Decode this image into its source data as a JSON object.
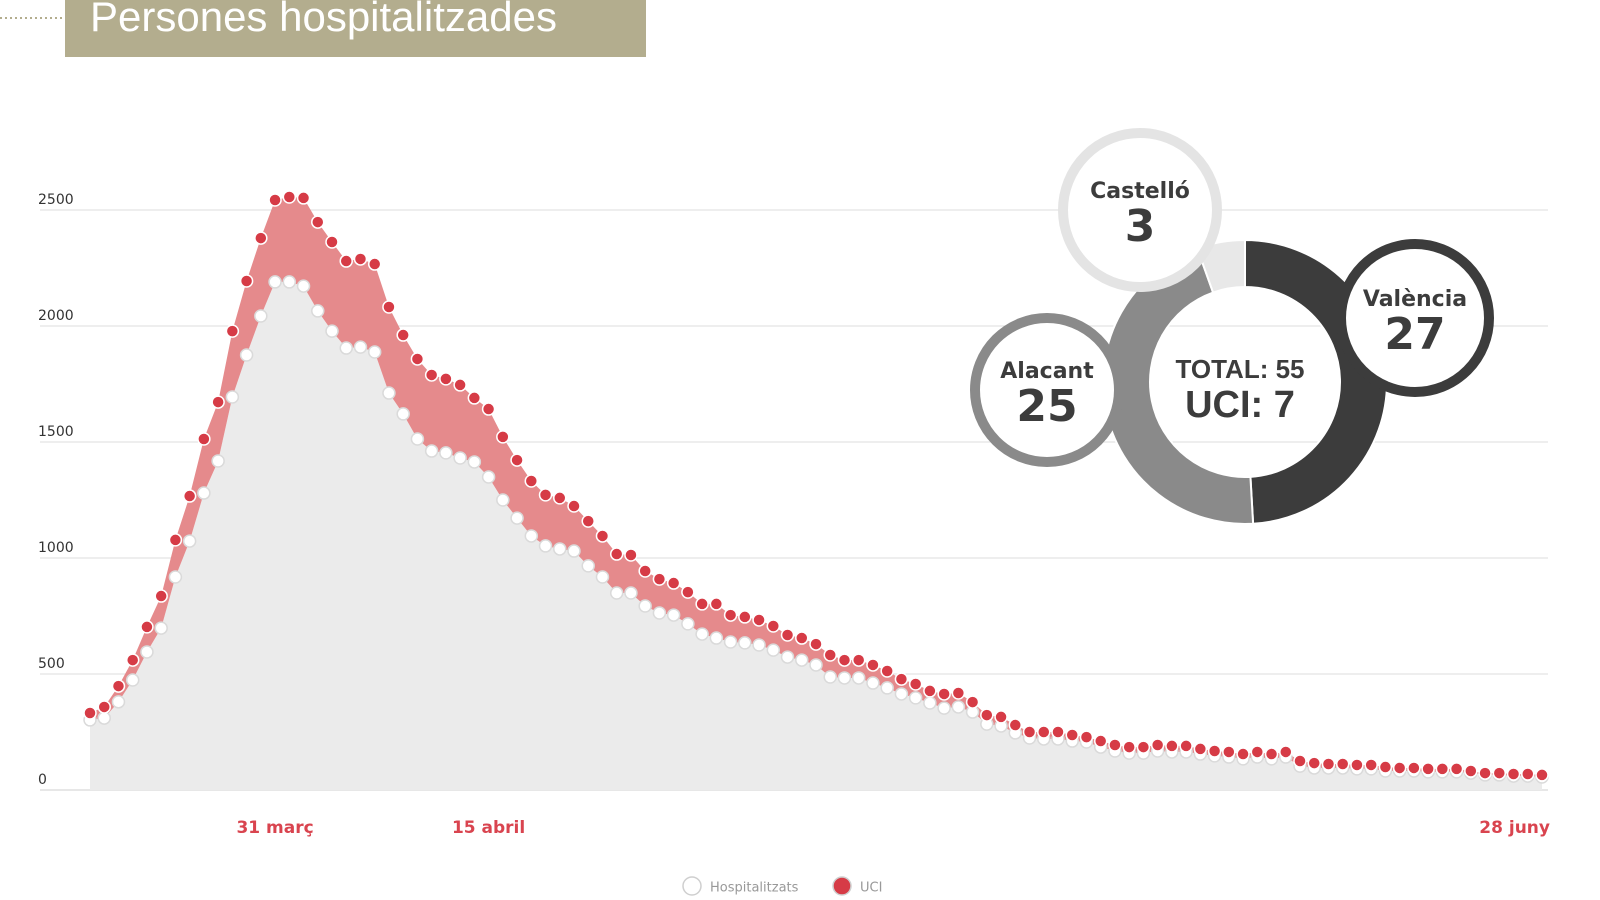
{
  "chart_data": [
    {
      "type": "area",
      "title": "Persones hospitalitzades",
      "categories": [
        null,
        null,
        null,
        null,
        null,
        null,
        null,
        null,
        null,
        null,
        null,
        null,
        null,
        "31 març",
        null,
        null,
        null,
        null,
        null,
        null,
        null,
        null,
        null,
        null,
        null,
        null,
        null,
        null,
        "15 abril",
        null,
        null,
        null,
        null,
        null,
        null,
        null,
        null,
        null,
        null,
        null,
        null,
        null,
        null,
        null,
        null,
        null,
        null,
        null,
        null,
        null,
        null,
        null,
        null,
        null,
        null,
        null,
        null,
        null,
        null,
        null,
        null,
        null,
        null,
        null,
        null,
        null,
        null,
        null,
        null,
        null,
        null,
        null,
        null,
        null,
        null,
        null,
        null,
        null,
        null,
        null,
        null,
        null,
        null,
        null,
        null,
        null,
        null,
        null,
        null,
        null,
        null,
        null,
        null,
        null,
        null,
        null,
        null,
        null,
        null,
        null,
        null,
        null,
        "28 juny"
      ],
      "stacked": true,
      "series": [
        {
          "name": "Hospitalitzats",
          "color": "#ebebeb",
          "marker_color": "#ffffff",
          "values": [
            302,
            310,
            380,
            474,
            595,
            698,
            918,
            1073,
            1280,
            1418,
            1694,
            1875,
            2043,
            2190,
            2190,
            2172,
            2065,
            1978,
            1905,
            1909,
            1888,
            1711,
            1621,
            1513,
            1461,
            1453,
            1431,
            1414,
            1349,
            1250,
            1172,
            1095,
            1052,
            1039,
            1030,
            966,
            918,
            849,
            849,
            793,
            763,
            754,
            716,
            672,
            655,
            638,
            634,
            625,
            603,
            573,
            560,
            539,
            487,
            483,
            483,
            461,
            440,
            414,
            397,
            375,
            353,
            358,
            336,
            284,
            276,
            246,
            224,
            220,
            220,
            211,
            207,
            185,
            168,
            159,
            159,
            168,
            164,
            164,
            155,
            147,
            142,
            134,
            142,
            134,
            142,
            103,
            95,
            95,
            95,
            91,
            91,
            82,
            82,
            82,
            78,
            78,
            78,
            73,
            65,
            65,
            60,
            60,
            56
          ]
        },
        {
          "name": "UCI",
          "color": "#e58a8c",
          "marker_color": "#d63b46",
          "values": [
            30,
            48,
            68,
            86,
            108,
            138,
            160,
            194,
            233,
            254,
            284,
            319,
            336,
            353,
            366,
            380,
            383,
            384,
            375,
            380,
            379,
            371,
            340,
            345,
            328,
            319,
            315,
            276,
            293,
            272,
            250,
            237,
            220,
            220,
            194,
            193,
            177,
            168,
            164,
            151,
            146,
            138,
            137,
            130,
            147,
            116,
            112,
            108,
            104,
            95,
            95,
            90,
            95,
            77,
            77,
            78,
            73,
            64,
            60,
            52,
            61,
            60,
            43,
            39,
            39,
            34,
            26,
            30,
            30,
            26,
            21,
            26,
            26,
            26,
            26,
            26,
            26,
            26,
            22,
            21,
            22,
            21,
            22,
            21,
            22,
            22,
            21,
            17,
            17,
            17,
            17,
            17,
            13,
            13,
            13,
            13,
            13,
            9,
            8,
            8,
            9,
            9,
            9
          ]
        }
      ],
      "ylim": [
        0,
        2500
      ],
      "yticks": [
        0,
        500,
        1000,
        1500,
        2000,
        2500
      ],
      "grid": true
    },
    {
      "type": "donut",
      "categories": [
        "València",
        "Alacant",
        "Castelló"
      ],
      "values": [
        27,
        25,
        3
      ],
      "colors": [
        "#3c3c3c",
        "#8a8a8a",
        "#e8e8e8"
      ],
      "center": [
        {
          "value": 55,
          "label": "TOTAL: 55"
        },
        {
          "value": 7,
          "label": "UCI: 7"
        }
      ]
    }
  ]
}
